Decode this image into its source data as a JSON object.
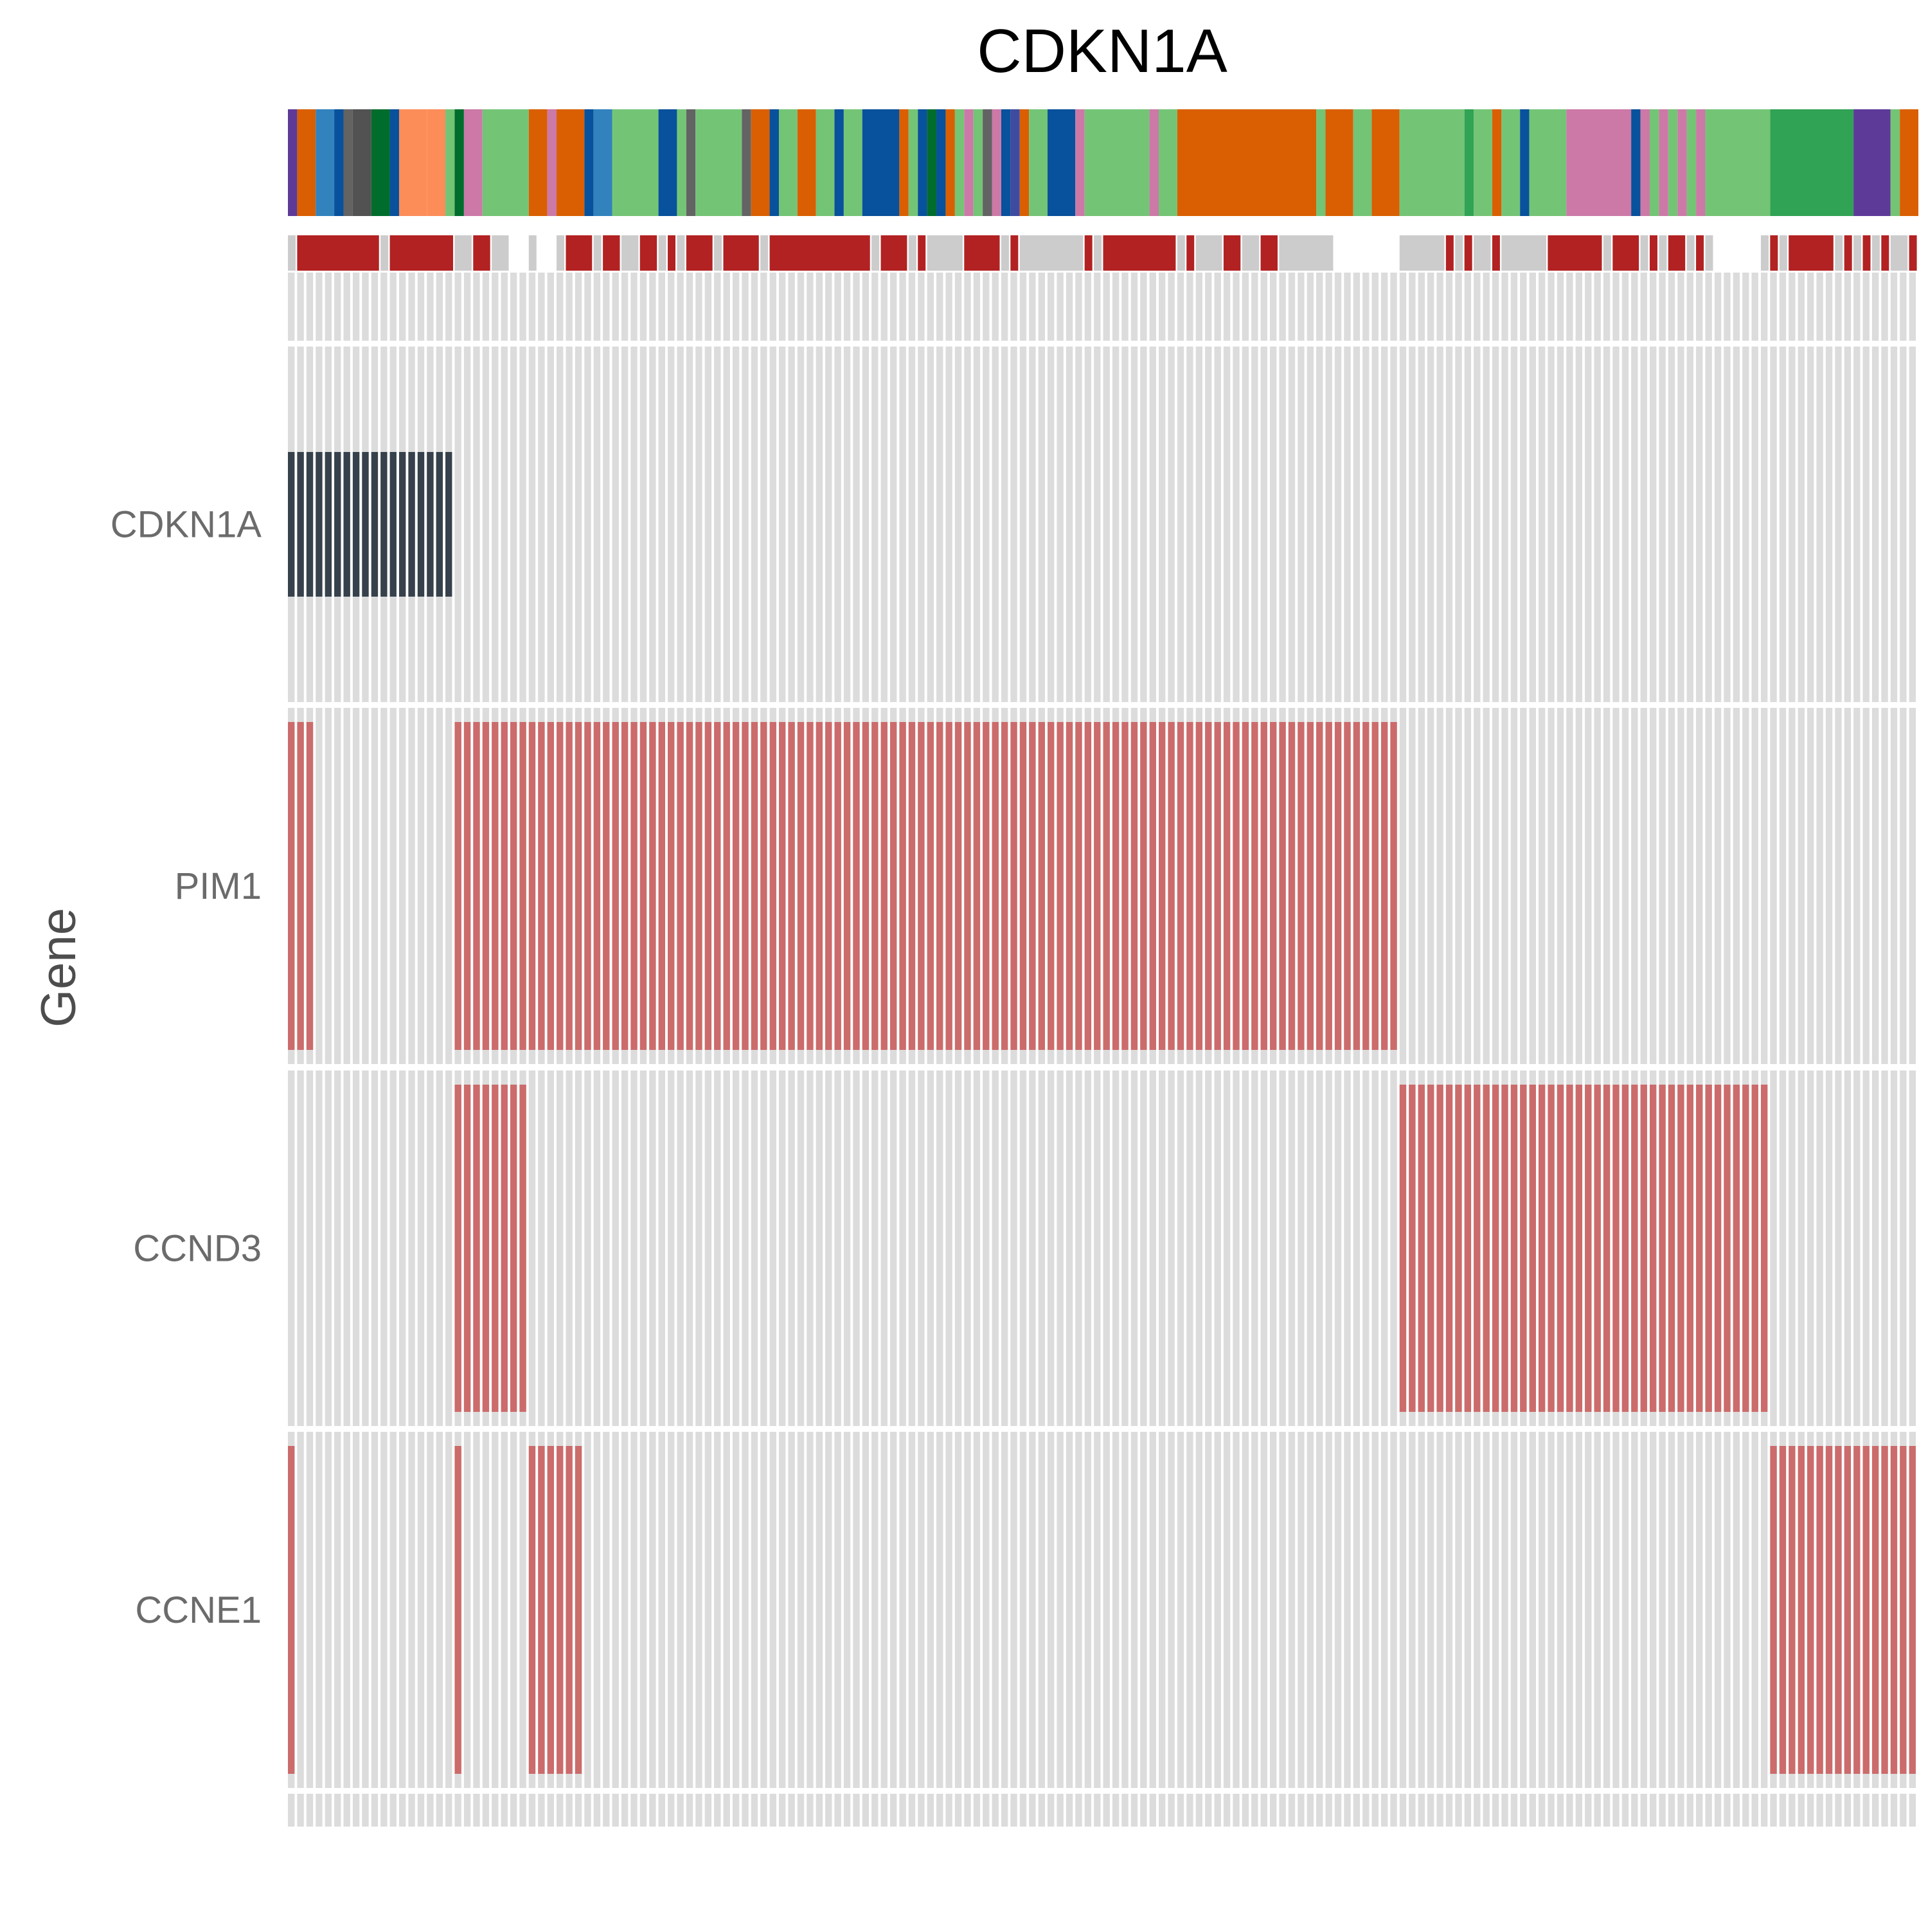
{
  "chart_data": {
    "type": "heatmap",
    "subtype": "oncoprint",
    "title": "CDKN1A",
    "ylabel": "Gene",
    "n_samples": 176,
    "genes": [
      "CDKN1A",
      "PIM1",
      "CCND3",
      "CCNE1"
    ],
    "colors": {
      "background_cell": "#dcdcdc",
      "cdkn1a_alteration": "#36414b",
      "alteration": "#cc6b6b",
      "status_bar_on": "#b22222",
      "status_bar_off": "#cccccc"
    },
    "alterations": [
      {
        "gene": "CDKN1A",
        "samples": [
          [
            0,
            17
          ]
        ],
        "color": "#36414b"
      },
      {
        "gene": "PIM1",
        "samples": [
          [
            0,
            2
          ],
          [
            18,
            119
          ]
        ],
        "color": "#cc6b6b"
      },
      {
        "gene": "CCND3",
        "samples": [
          [
            18,
            25
          ],
          [
            120,
            159
          ]
        ],
        "color": "#cc6b6b"
      },
      {
        "gene": "CCNE1",
        "samples": [
          [
            0,
            0
          ],
          [
            18,
            18
          ],
          [
            26,
            31
          ],
          [
            160,
            175
          ]
        ],
        "color": "#cc6b6b"
      }
    ],
    "annotation_top": [
      {
        "from": 0,
        "to": 0,
        "color": "#5e3a98"
      },
      {
        "from": 1,
        "to": 2,
        "color": "#d95f02"
      },
      {
        "from": 3,
        "to": 4,
        "color": "#3182bd"
      },
      {
        "from": 5,
        "to": 5,
        "color": "#08519c"
      },
      {
        "from": 6,
        "to": 6,
        "color": "#636363"
      },
      {
        "from": 7,
        "to": 8,
        "color": "#525252"
      },
      {
        "from": 9,
        "to": 10,
        "color": "#006d2c"
      },
      {
        "from": 11,
        "to": 11,
        "color": "#08519c"
      },
      {
        "from": 12,
        "to": 14,
        "color": "#fc8d59"
      },
      {
        "from": 15,
        "to": 16,
        "color": "#fc8d59"
      },
      {
        "from": 17,
        "to": 17,
        "color": "#74c476"
      },
      {
        "from": 18,
        "to": 18,
        "color": "#006d2c"
      },
      {
        "from": 19,
        "to": 20,
        "color": "#cc79a7"
      },
      {
        "from": 21,
        "to": 25,
        "color": "#74c476"
      },
      {
        "from": 26,
        "to": 27,
        "color": "#d95f02"
      },
      {
        "from": 28,
        "to": 28,
        "color": "#cc79a7"
      },
      {
        "from": 29,
        "to": 31,
        "color": "#d95f02"
      },
      {
        "from": 32,
        "to": 32,
        "color": "#08519c"
      },
      {
        "from": 33,
        "to": 34,
        "color": "#3182bd"
      },
      {
        "from": 35,
        "to": 39,
        "color": "#74c476"
      },
      {
        "from": 40,
        "to": 41,
        "color": "#08519c"
      },
      {
        "from": 42,
        "to": 42,
        "color": "#74c476"
      },
      {
        "from": 43,
        "to": 43,
        "color": "#636363"
      },
      {
        "from": 44,
        "to": 48,
        "color": "#74c476"
      },
      {
        "from": 49,
        "to": 49,
        "color": "#636363"
      },
      {
        "from": 50,
        "to": 51,
        "color": "#d95f02"
      },
      {
        "from": 52,
        "to": 52,
        "color": "#08519c"
      },
      {
        "from": 53,
        "to": 54,
        "color": "#74c476"
      },
      {
        "from": 55,
        "to": 56,
        "color": "#d95f02"
      },
      {
        "from": 57,
        "to": 58,
        "color": "#74c476"
      },
      {
        "from": 59,
        "to": 59,
        "color": "#08519c"
      },
      {
        "from": 60,
        "to": 61,
        "color": "#74c476"
      },
      {
        "from": 62,
        "to": 65,
        "color": "#08519c"
      },
      {
        "from": 66,
        "to": 66,
        "color": "#d95f02"
      },
      {
        "from": 67,
        "to": 67,
        "color": "#74c476"
      },
      {
        "from": 68,
        "to": 68,
        "color": "#08519c"
      },
      {
        "from": 69,
        "to": 69,
        "color": "#006d2c"
      },
      {
        "from": 70,
        "to": 70,
        "color": "#08519c"
      },
      {
        "from": 71,
        "to": 71,
        "color": "#d95f02"
      },
      {
        "from": 72,
        "to": 72,
        "color": "#74c476"
      },
      {
        "from": 73,
        "to": 73,
        "color": "#cc79a7"
      },
      {
        "from": 74,
        "to": 74,
        "color": "#74c476"
      },
      {
        "from": 75,
        "to": 75,
        "color": "#636363"
      },
      {
        "from": 76,
        "to": 76,
        "color": "#cc79a7"
      },
      {
        "from": 77,
        "to": 77,
        "color": "#08519c"
      },
      {
        "from": 78,
        "to": 78,
        "color": "#3f4ba0"
      },
      {
        "from": 79,
        "to": 79,
        "color": "#d95f02"
      },
      {
        "from": 80,
        "to": 81,
        "color": "#74c476"
      },
      {
        "from": 82,
        "to": 84,
        "color": "#08519c"
      },
      {
        "from": 85,
        "to": 85,
        "color": "#cc79a7"
      },
      {
        "from": 86,
        "to": 92,
        "color": "#74c476"
      },
      {
        "from": 93,
        "to": 93,
        "color": "#cc79a7"
      },
      {
        "from": 94,
        "to": 95,
        "color": "#74c476"
      },
      {
        "from": 96,
        "to": 110,
        "color": "#d95f02"
      },
      {
        "from": 111,
        "to": 111,
        "color": "#74c476"
      },
      {
        "from": 112,
        "to": 114,
        "color": "#d95f02"
      },
      {
        "from": 115,
        "to": 116,
        "color": "#74c476"
      },
      {
        "from": 117,
        "to": 119,
        "color": "#d95f02"
      },
      {
        "from": 120,
        "to": 126,
        "color": "#74c476"
      },
      {
        "from": 127,
        "to": 127,
        "color": "#31a354"
      },
      {
        "from": 128,
        "to": 129,
        "color": "#74c476"
      },
      {
        "from": 130,
        "to": 130,
        "color": "#d95f02"
      },
      {
        "from": 131,
        "to": 132,
        "color": "#74c476"
      },
      {
        "from": 133,
        "to": 133,
        "color": "#08519c"
      },
      {
        "from": 134,
        "to": 137,
        "color": "#74c476"
      },
      {
        "from": 138,
        "to": 144,
        "color": "#cc79a7"
      },
      {
        "from": 145,
        "to": 145,
        "color": "#08519c"
      },
      {
        "from": 146,
        "to": 146,
        "color": "#cc79a7"
      },
      {
        "from": 147,
        "to": 147,
        "color": "#74c476"
      },
      {
        "from": 148,
        "to": 148,
        "color": "#cc79a7"
      },
      {
        "from": 149,
        "to": 149,
        "color": "#74c476"
      },
      {
        "from": 150,
        "to": 150,
        "color": "#cc79a7"
      },
      {
        "from": 151,
        "to": 151,
        "color": "#74c476"
      },
      {
        "from": 152,
        "to": 152,
        "color": "#cc79a7"
      },
      {
        "from": 153,
        "to": 159,
        "color": "#74c476"
      },
      {
        "from": 160,
        "to": 168,
        "color": "#31a354"
      },
      {
        "from": 169,
        "to": 172,
        "color": "#5e3a98"
      },
      {
        "from": 173,
        "to": 173,
        "color": "#74c476"
      },
      {
        "from": 174,
        "to": 175,
        "color": "#d95f02"
      }
    ],
    "status_bar": [
      {
        "from": 0,
        "to": 0,
        "value": "off"
      },
      {
        "from": 1,
        "to": 9,
        "value": "on"
      },
      {
        "from": 10,
        "to": 10,
        "value": "off"
      },
      {
        "from": 11,
        "to": 17,
        "value": "on"
      },
      {
        "from": 18,
        "to": 19,
        "value": "off"
      },
      {
        "from": 20,
        "to": 21,
        "value": "on"
      },
      {
        "from": 22,
        "to": 23,
        "value": "off"
      },
      {
        "from": 24,
        "to": 25,
        "value": "none"
      },
      {
        "from": 26,
        "to": 26,
        "value": "off"
      },
      {
        "from": 27,
        "to": 28,
        "value": "none"
      },
      {
        "from": 29,
        "to": 29,
        "value": "off"
      },
      {
        "from": 30,
        "to": 32,
        "value": "on"
      },
      {
        "from": 33,
        "to": 33,
        "value": "off"
      },
      {
        "from": 34,
        "to": 35,
        "value": "on"
      },
      {
        "from": 36,
        "to": 37,
        "value": "off"
      },
      {
        "from": 38,
        "to": 39,
        "value": "on"
      },
      {
        "from": 40,
        "to": 40,
        "value": "off"
      },
      {
        "from": 41,
        "to": 41,
        "value": "on"
      },
      {
        "from": 42,
        "to": 42,
        "value": "off"
      },
      {
        "from": 43,
        "to": 45,
        "value": "on"
      },
      {
        "from": 46,
        "to": 46,
        "value": "off"
      },
      {
        "from": 47,
        "to": 50,
        "value": "on"
      },
      {
        "from": 51,
        "to": 51,
        "value": "off"
      },
      {
        "from": 52,
        "to": 62,
        "value": "on"
      },
      {
        "from": 63,
        "to": 63,
        "value": "off"
      },
      {
        "from": 64,
        "to": 66,
        "value": "on"
      },
      {
        "from": 67,
        "to": 67,
        "value": "off"
      },
      {
        "from": 68,
        "to": 68,
        "value": "on"
      },
      {
        "from": 69,
        "to": 72,
        "value": "off"
      },
      {
        "from": 73,
        "to": 76,
        "value": "on"
      },
      {
        "from": 77,
        "to": 77,
        "value": "off"
      },
      {
        "from": 78,
        "to": 78,
        "value": "on"
      },
      {
        "from": 79,
        "to": 85,
        "value": "off"
      },
      {
        "from": 86,
        "to": 86,
        "value": "on"
      },
      {
        "from": 87,
        "to": 87,
        "value": "off"
      },
      {
        "from": 88,
        "to": 95,
        "value": "on"
      },
      {
        "from": 96,
        "to": 96,
        "value": "off"
      },
      {
        "from": 97,
        "to": 97,
        "value": "on"
      },
      {
        "from": 98,
        "to": 100,
        "value": "off"
      },
      {
        "from": 101,
        "to": 102,
        "value": "on"
      },
      {
        "from": 103,
        "to": 104,
        "value": "off"
      },
      {
        "from": 105,
        "to": 106,
        "value": "on"
      },
      {
        "from": 107,
        "to": 112,
        "value": "off"
      },
      {
        "from": 113,
        "to": 119,
        "value": "none"
      },
      {
        "from": 120,
        "to": 124,
        "value": "off"
      },
      {
        "from": 125,
        "to": 125,
        "value": "on"
      },
      {
        "from": 126,
        "to": 126,
        "value": "off"
      },
      {
        "from": 127,
        "to": 127,
        "value": "on"
      },
      {
        "from": 128,
        "to": 129,
        "value": "off"
      },
      {
        "from": 130,
        "to": 130,
        "value": "on"
      },
      {
        "from": 131,
        "to": 135,
        "value": "off"
      },
      {
        "from": 136,
        "to": 141,
        "value": "on"
      },
      {
        "from": 142,
        "to": 142,
        "value": "off"
      },
      {
        "from": 143,
        "to": 145,
        "value": "on"
      },
      {
        "from": 146,
        "to": 146,
        "value": "off"
      },
      {
        "from": 147,
        "to": 147,
        "value": "on"
      },
      {
        "from": 148,
        "to": 148,
        "value": "off"
      },
      {
        "from": 149,
        "to": 150,
        "value": "on"
      },
      {
        "from": 151,
        "to": 151,
        "value": "off"
      },
      {
        "from": 152,
        "to": 152,
        "value": "on"
      },
      {
        "from": 153,
        "to": 153,
        "value": "off"
      },
      {
        "from": 154,
        "to": 158,
        "value": "none"
      },
      {
        "from": 159,
        "to": 159,
        "value": "off"
      },
      {
        "from": 160,
        "to": 160,
        "value": "on"
      },
      {
        "from": 161,
        "to": 161,
        "value": "off"
      },
      {
        "from": 162,
        "to": 166,
        "value": "on"
      },
      {
        "from": 167,
        "to": 167,
        "value": "off"
      },
      {
        "from": 168,
        "to": 168,
        "value": "on"
      },
      {
        "from": 169,
        "to": 169,
        "value": "off"
      },
      {
        "from": 170,
        "to": 170,
        "value": "on"
      },
      {
        "from": 171,
        "to": 171,
        "value": "off"
      },
      {
        "from": 172,
        "to": 172,
        "value": "on"
      },
      {
        "from": 173,
        "to": 174,
        "value": "off"
      },
      {
        "from": 175,
        "to": 175,
        "value": "on"
      }
    ],
    "legend": "none",
    "grid": false
  }
}
